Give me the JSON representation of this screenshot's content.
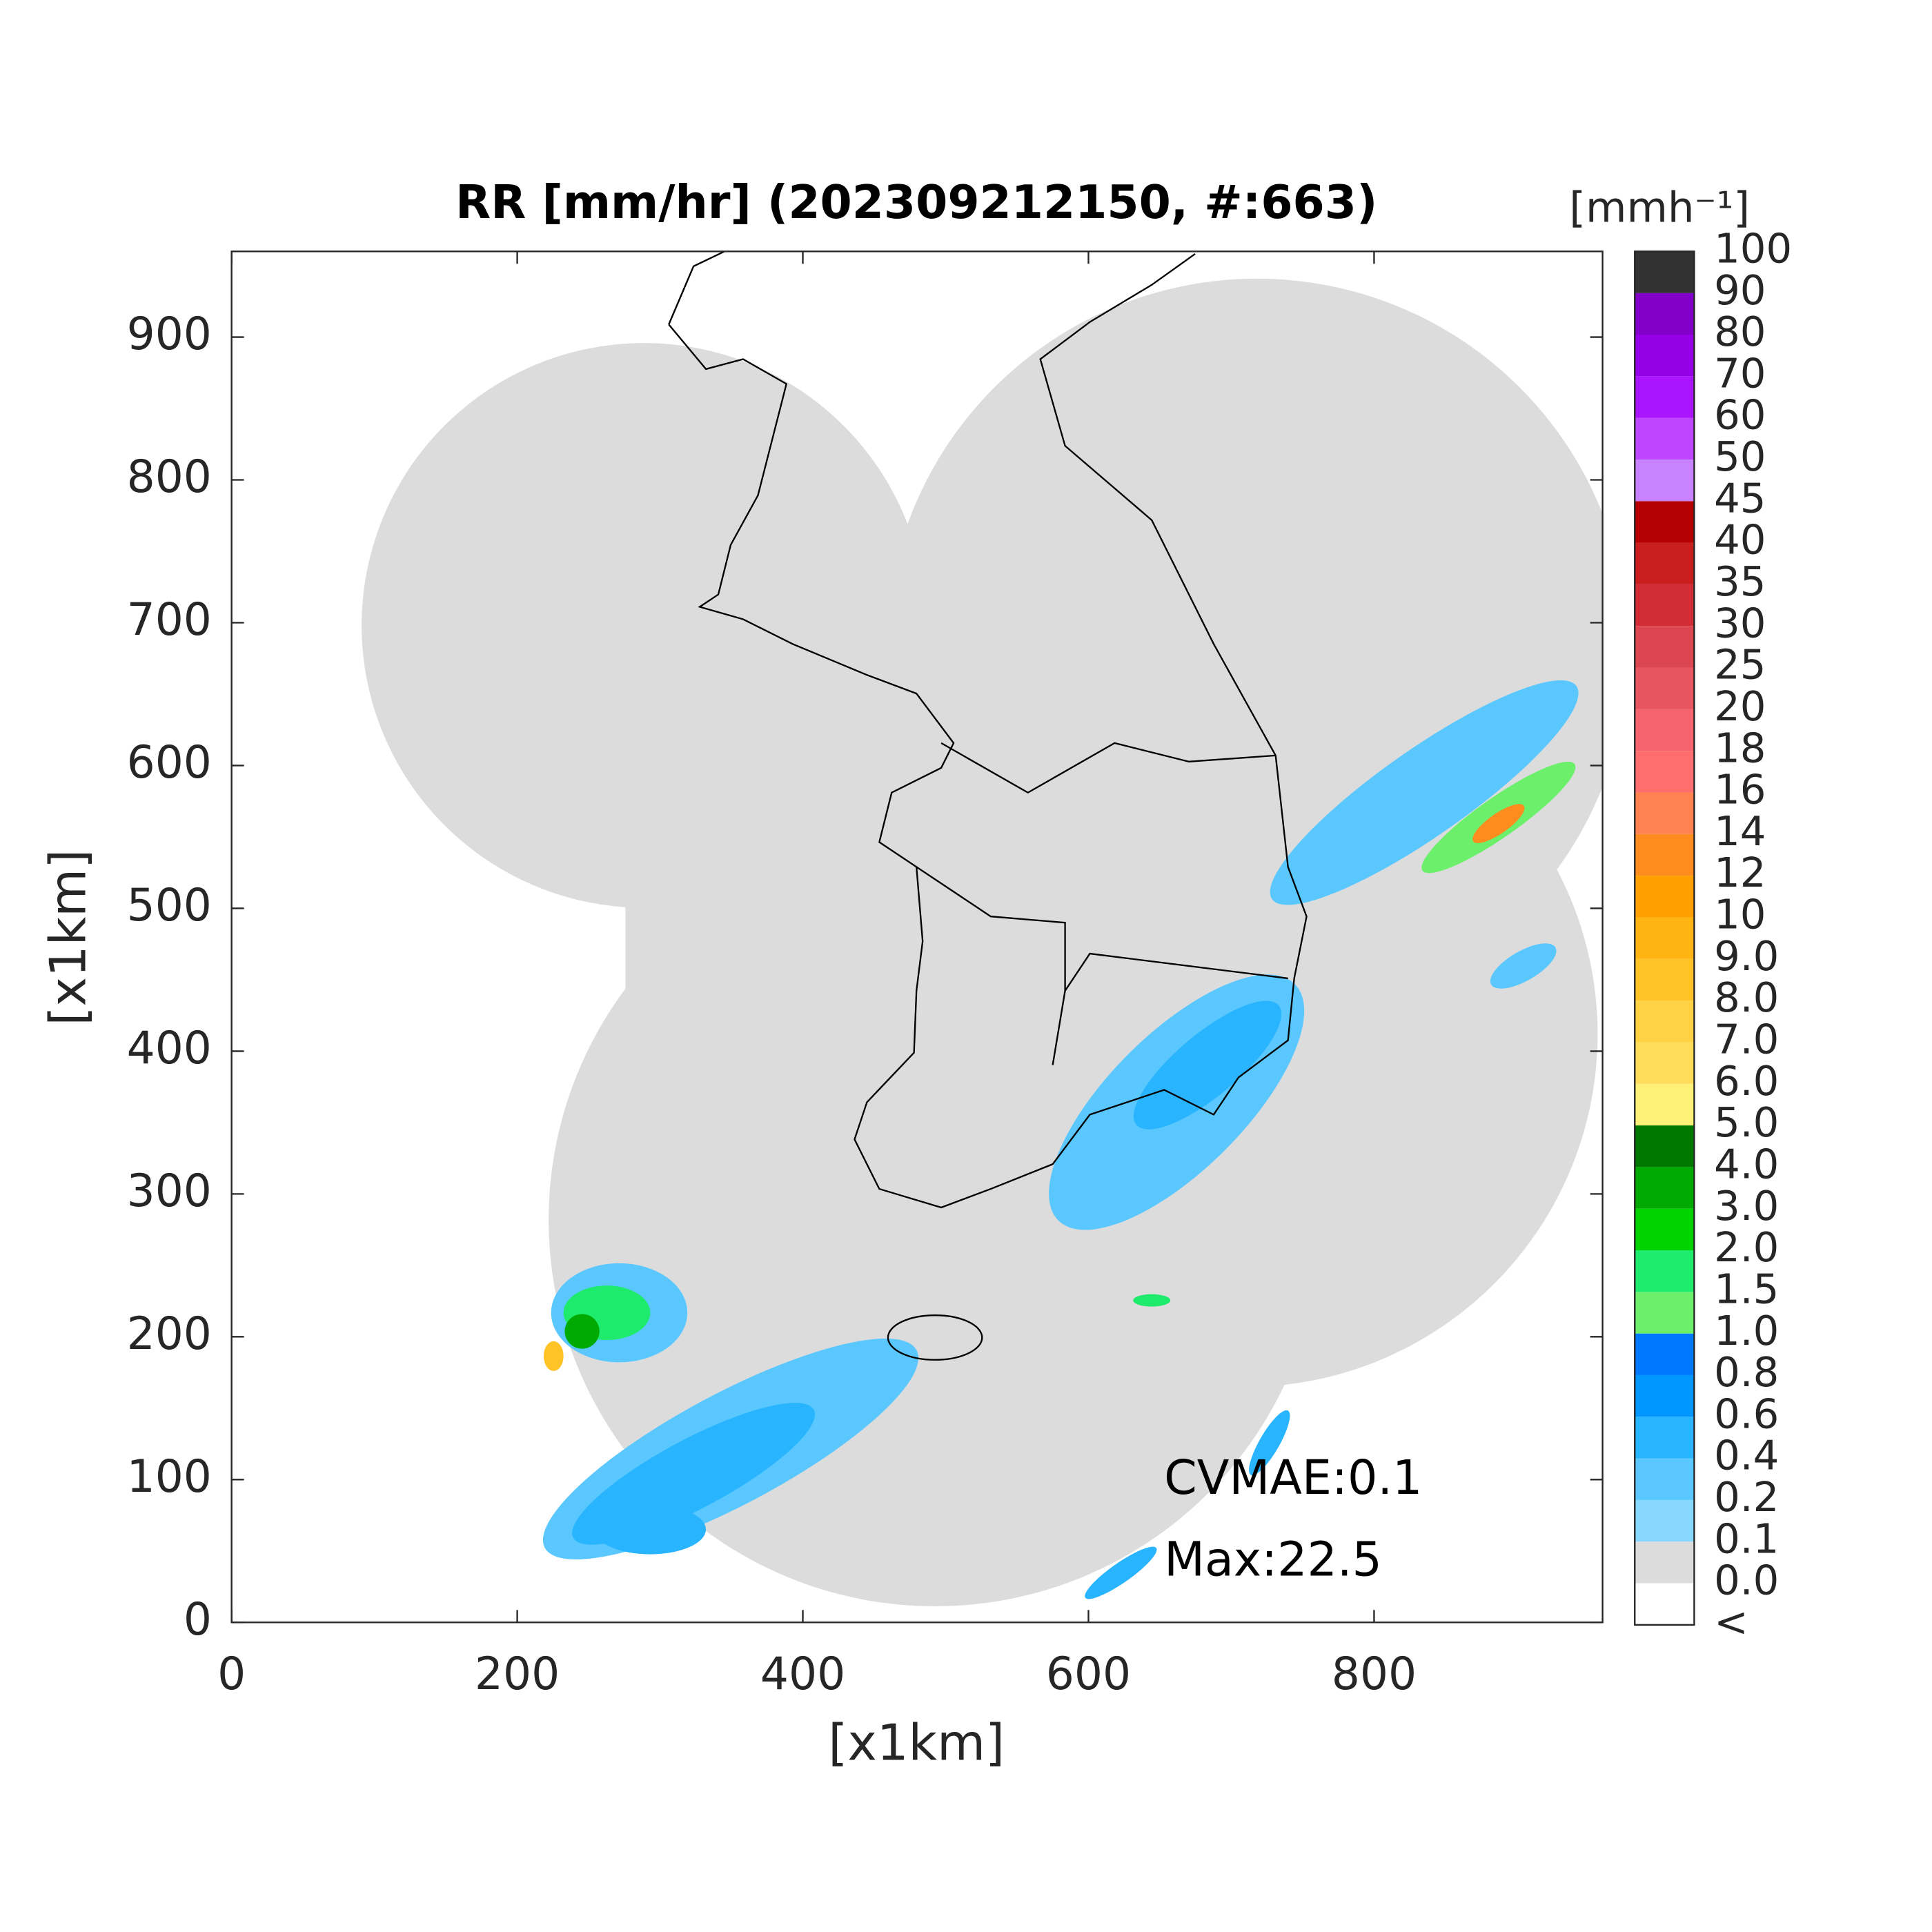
{
  "chart_data": {
    "type": "radar-map",
    "title": "RR [mm/hr] (202309212150, #:663)",
    "x_label": "[x1km]",
    "y_label": "[x1km]",
    "xlim": [
      0,
      960
    ],
    "ylim": [
      0,
      960
    ],
    "xticks": [
      0,
      200,
      400,
      600,
      800
    ],
    "yticks": [
      0,
      100,
      200,
      300,
      400,
      500,
      600,
      700,
      800,
      900
    ],
    "annotations": [
      "CVMAE:0.1",
      "Max:22.5"
    ],
    "colorbar_title": "[mmh⁻¹]",
    "colorbar_labels": [
      "<",
      "0.0",
      "0.1",
      "0.2",
      "0.4",
      "0.6",
      "0.8",
      "1.0",
      "1.5",
      "2.0",
      "3.0",
      "4.0",
      "5.0",
      "6.0",
      "7.0",
      "8.0",
      "9.0",
      "10",
      "12",
      "14",
      "16",
      "18",
      "20",
      "25",
      "30",
      "35",
      "40",
      "45",
      "50",
      "60",
      "70",
      "80",
      "90",
      "100"
    ],
    "colorbar_colors": [
      "#ffffff",
      "#dcdcdc",
      "#87d7ff",
      "#5ac8ff",
      "#28b4ff",
      "#0096ff",
      "#0078ff",
      "#6cf06c",
      "#1eea6c",
      "#00d200",
      "#00aa00",
      "#007800",
      "#fff078",
      "#ffdc5a",
      "#ffd246",
      "#ffc328",
      "#ffb414",
      "#ffa000",
      "#ff8c1e",
      "#ff8250",
      "#ff6e6e",
      "#f5646e",
      "#e65560",
      "#dc4650",
      "#d22d37",
      "#c81e1e",
      "#b40000",
      "#c882ff",
      "#be46ff",
      "#aa14ff",
      "#9600e6",
      "#8200c8",
      "#323232"
    ]
  }
}
